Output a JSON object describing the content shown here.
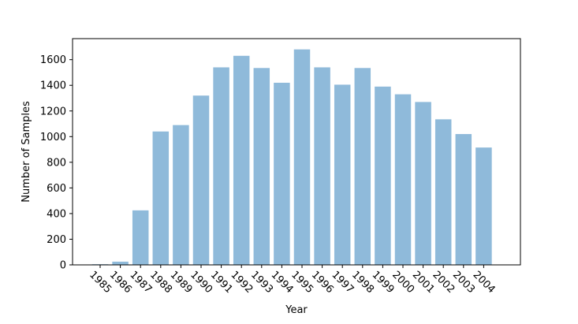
{
  "chart_data": {
    "type": "bar",
    "categories": [
      "1985",
      "1986",
      "1987",
      "1988",
      "1989",
      "1990",
      "1991",
      "1992",
      "1993",
      "1994",
      "1995",
      "1996",
      "1997",
      "1998",
      "1999",
      "2000",
      "2001",
      "2002",
      "2003",
      "2004"
    ],
    "values": [
      5,
      25,
      425,
      1040,
      1090,
      1320,
      1540,
      1630,
      1535,
      1420,
      1680,
      1540,
      1405,
      1535,
      1390,
      1330,
      1270,
      1135,
      1020,
      915
    ],
    "title": "",
    "xlabel": "Year",
    "ylabel": "Number of Samples",
    "ylim": [
      0,
      1764
    ],
    "yticks": [
      0,
      200,
      400,
      600,
      800,
      1000,
      1200,
      1400,
      1600
    ],
    "bar_color": "#8fbada",
    "grid": false,
    "legend": "none"
  }
}
